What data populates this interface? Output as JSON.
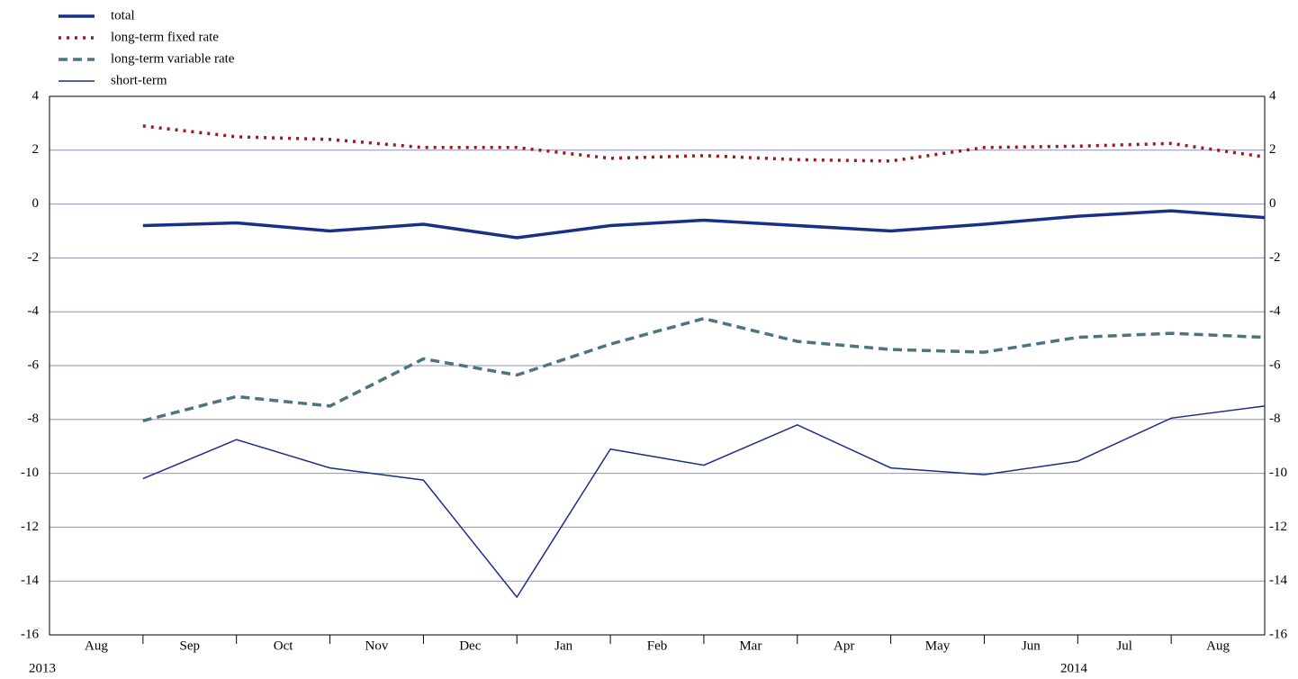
{
  "chart_data": {
    "type": "line",
    "categories": [
      "Aug",
      "Sep",
      "Oct",
      "Nov",
      "Dec",
      "Jan",
      "Feb",
      "Mar",
      "Apr",
      "May",
      "Jun",
      "Jul",
      "Aug"
    ],
    "years": [
      "2013",
      "2014"
    ],
    "series": [
      {
        "name": "total",
        "color": "#1a2f86",
        "style": "solid",
        "width": 3.5,
        "values": [
          -0.8,
          -0.7,
          -1.0,
          -0.75,
          -1.25,
          -0.8,
          -0.6,
          -0.8,
          -1.0,
          -0.75,
          -0.45,
          -0.25,
          -0.5
        ]
      },
      {
        "name": "long-term fixed rate",
        "color": "#a0161a",
        "style": "dotted",
        "width": 3.5,
        "values": [
          2.9,
          2.5,
          2.4,
          2.1,
          2.1,
          1.7,
          1.8,
          1.65,
          1.6,
          2.1,
          2.15,
          2.25,
          1.75
        ]
      },
      {
        "name": "long-term variable rate",
        "color": "#4e7381",
        "style": "dashed",
        "width": 3.5,
        "values": [
          -8.05,
          -7.15,
          -7.5,
          -5.75,
          -6.35,
          -5.2,
          -4.25,
          -5.1,
          -5.4,
          -5.5,
          -4.95,
          -4.8,
          -4.95
        ]
      },
      {
        "name": "short-term",
        "color": "#1a2f86",
        "style": "solid",
        "width": 1.5,
        "values": [
          -10.2,
          -8.75,
          -9.8,
          -10.25,
          -14.6,
          -9.1,
          -9.7,
          -8.2,
          -9.8,
          -10.05,
          -9.55,
          -7.95,
          -7.5
        ]
      }
    ],
    "ylim": [
      -16,
      4
    ],
    "yticks": [
      -16,
      -14,
      -12,
      -10,
      -8,
      -6,
      -4,
      -2,
      0,
      2,
      4
    ],
    "grid": true,
    "legend": "top-left"
  }
}
